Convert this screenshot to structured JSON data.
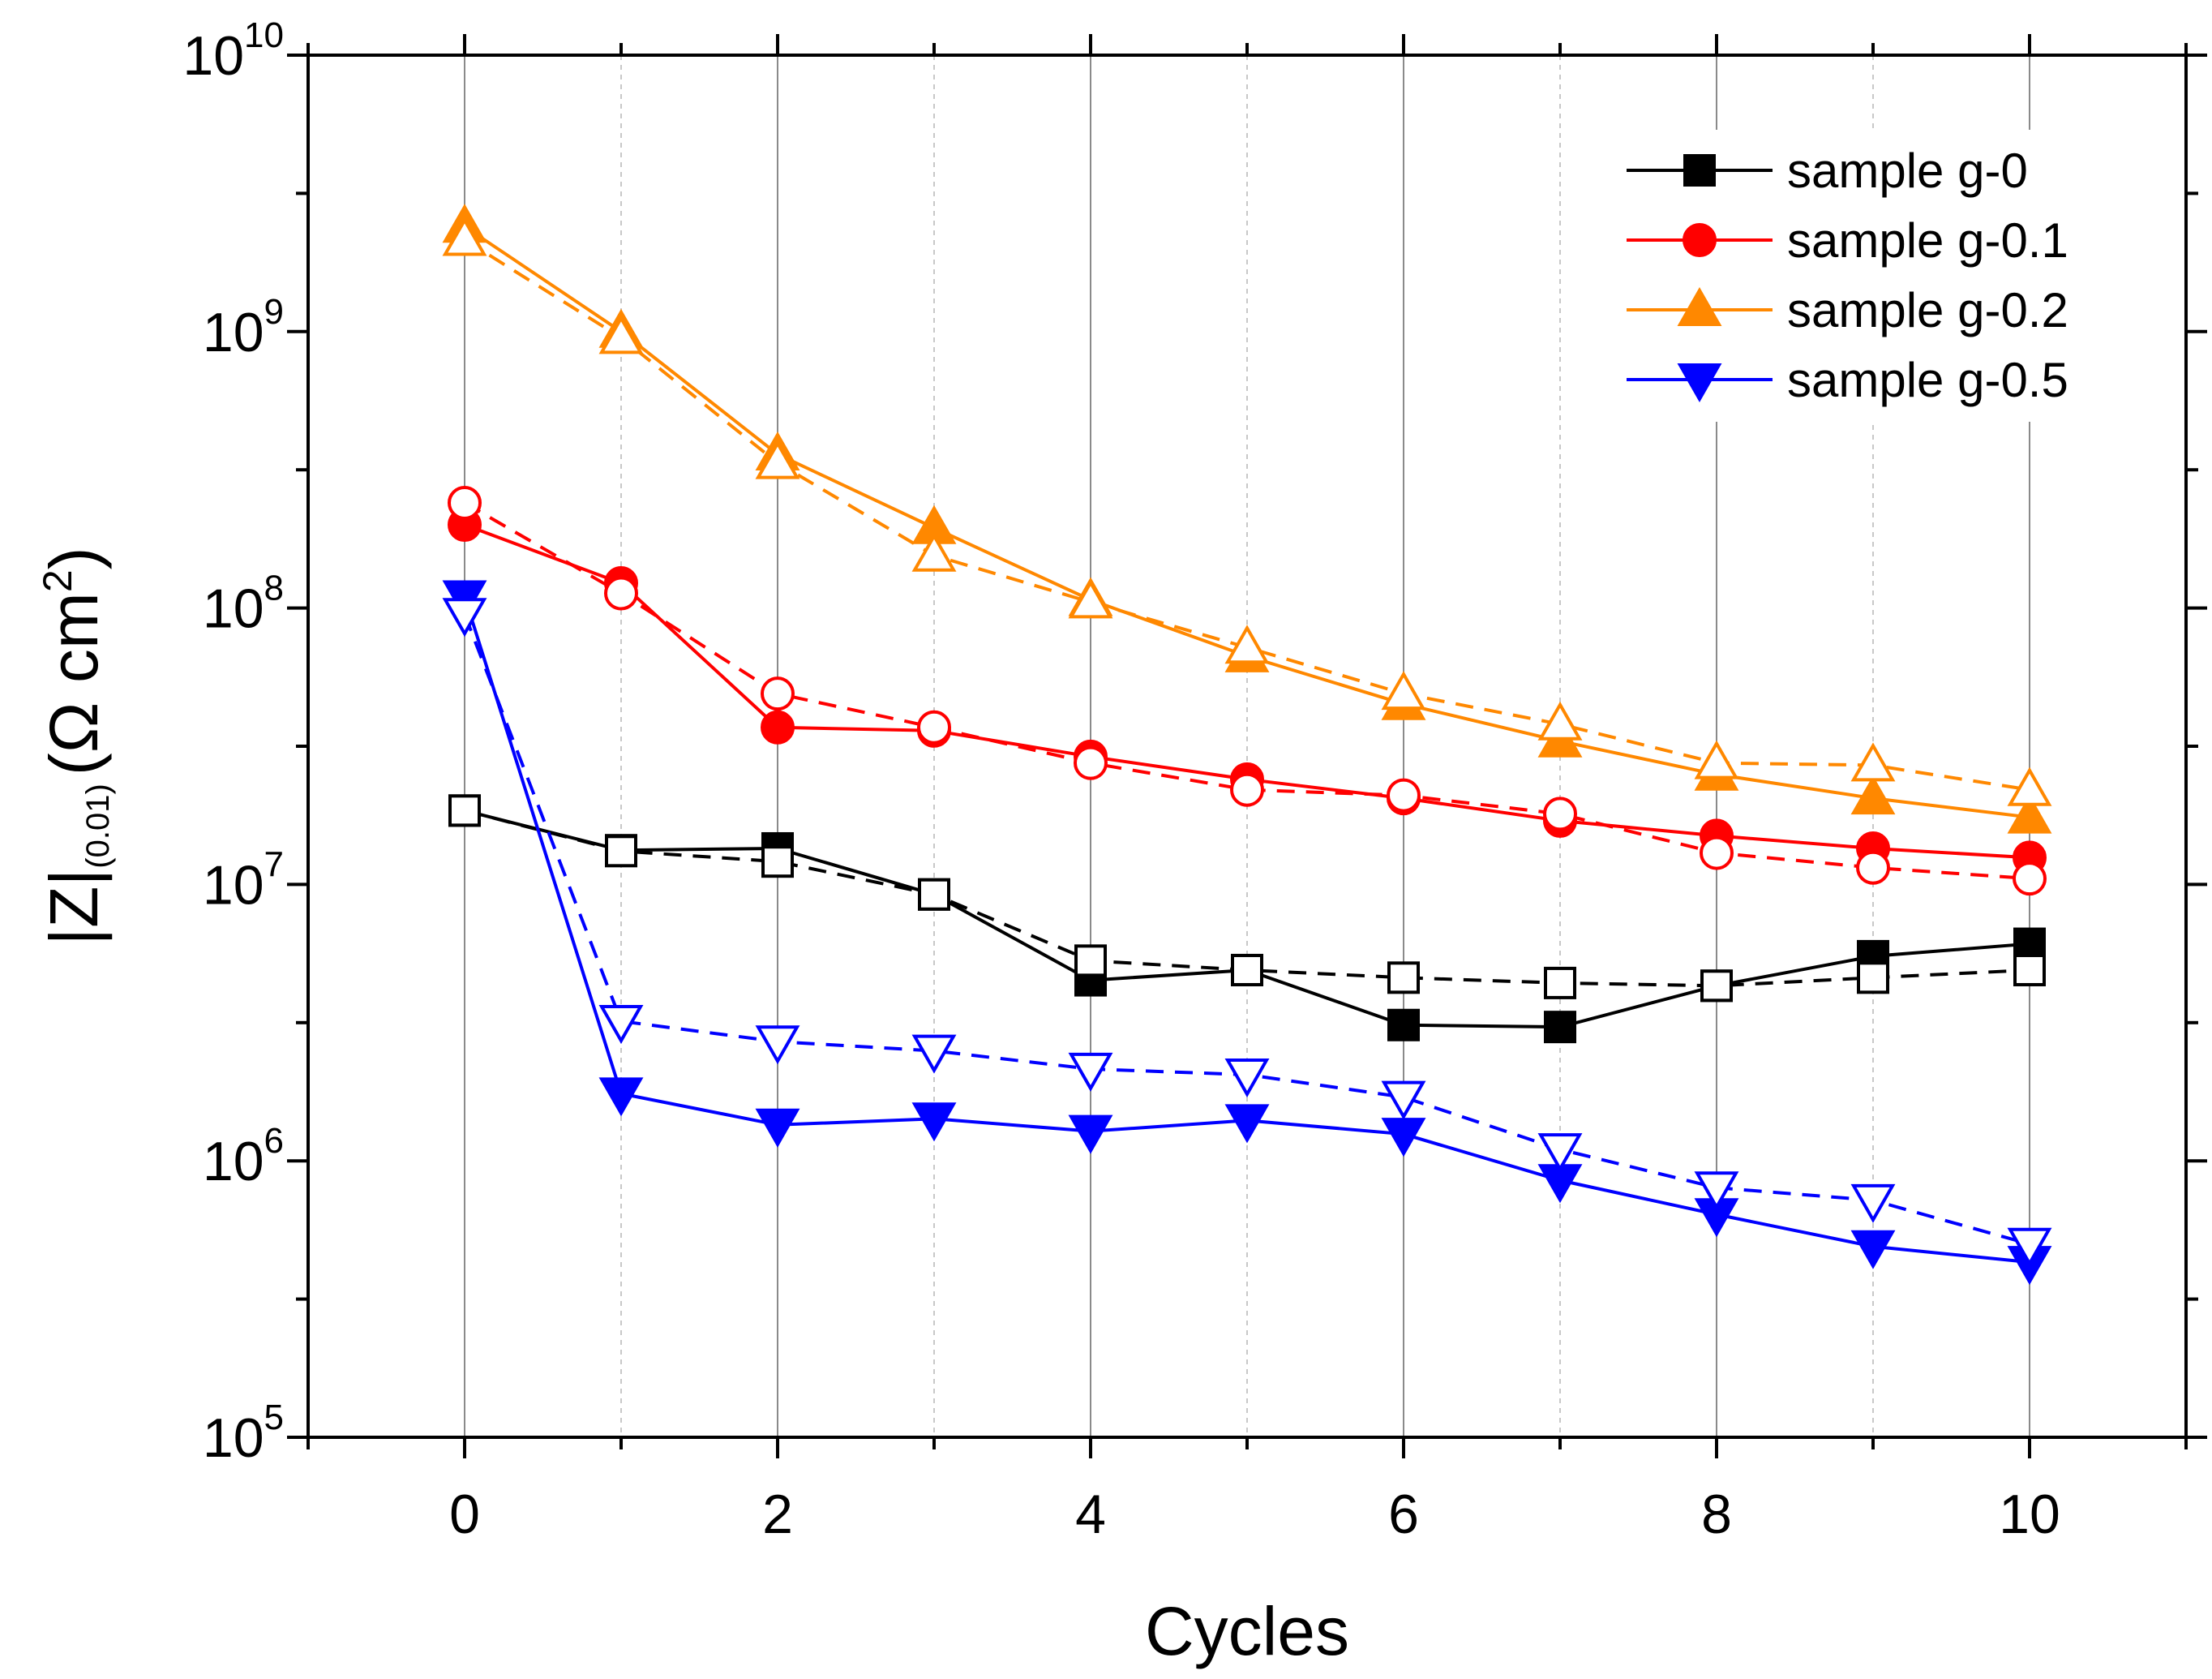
{
  "chart_data": {
    "type": "line",
    "title": "",
    "xlabel": "Cycles",
    "ylabel": {
      "main": "|Z|",
      "subscript": "(0.01)",
      "unit_prefix": "(Ω cm",
      "unit_superscript": "2",
      "unit_suffix": ")"
    },
    "x_axis": {
      "range": [
        -1,
        11
      ],
      "major_ticks": [
        0,
        2,
        4,
        6,
        8,
        10
      ],
      "major_tick_labels": [
        "0",
        "2",
        "4",
        "6",
        "8",
        "10"
      ],
      "minor_ticks": [
        1,
        3,
        5,
        7,
        9
      ]
    },
    "y_axis": {
      "scale": "log",
      "range": [
        100000,
        10000000000
      ],
      "tick_labels": [
        {
          "base": "10",
          "exp": "5",
          "value": 100000
        },
        {
          "base": "10",
          "exp": "6",
          "value": 1000000
        },
        {
          "base": "10",
          "exp": "7",
          "value": 10000000
        },
        {
          "base": "10",
          "exp": "8",
          "value": 100000000
        },
        {
          "base": "10",
          "exp": "9",
          "value": 1000000000
        },
        {
          "base": "10",
          "exp": "10",
          "value": 10000000000
        }
      ]
    },
    "grid": "vertical",
    "legend": {
      "position": "top-right",
      "entries": [
        "sample g-0",
        "sample g-0.1",
        "sample g-0.2",
        "sample g-0.5"
      ]
    },
    "x": [
      0,
      1,
      2,
      3,
      4,
      5,
      6,
      7,
      8,
      9,
      10
    ],
    "series": [
      {
        "name": "sample g-0",
        "color": "#000000",
        "marker": "square",
        "values": [
          18500000,
          13300000,
          13500000,
          9200000,
          4500000,
          4900000,
          3100000,
          3050000,
          4300000,
          5500000,
          6100000
        ],
        "open_values": [
          18500000,
          13200000,
          12100000,
          9200000,
          5300000,
          4900000,
          4600000,
          4400000,
          4300000,
          4600000,
          4900000
        ]
      },
      {
        "name": "sample g-0.1",
        "color": "#ff0000",
        "marker": "circle",
        "values": [
          200000000,
          123000000,
          37000000,
          36000000,
          29000000,
          24000000,
          20500000,
          17000000,
          15000000,
          13500000,
          12500000
        ],
        "open_values": [
          240000000,
          113000000,
          49000000,
          37000000,
          27500000,
          22000000,
          21000000,
          18000000,
          13000000,
          11500000,
          10500000
        ]
      },
      {
        "name": "sample g-0.2",
        "color": "#ff8800",
        "marker": "triangle-up",
        "values": [
          2400000000,
          1000000000,
          360000000,
          195000000,
          107000000,
          67000000,
          45000000,
          33000000,
          25000000,
          20500000,
          17500000
        ],
        "open_values": [
          2150000000,
          950000000,
          335000000,
          155000000,
          105000000,
          72000000,
          49000000,
          38000000,
          27500000,
          27000000,
          22000000
        ]
      },
      {
        "name": "sample g-0.5",
        "color": "#0000ff",
        "marker": "triangle-down",
        "values": [
          110000000,
          1750000,
          1350000,
          1420000,
          1280000,
          1400000,
          1250000,
          850000,
          640000,
          490000,
          430000
        ],
        "open_values": [
          95000000,
          3200000,
          2700000,
          2500000,
          2150000,
          2050000,
          1700000,
          1100000,
          800000,
          720000,
          500000
        ]
      }
    ]
  }
}
